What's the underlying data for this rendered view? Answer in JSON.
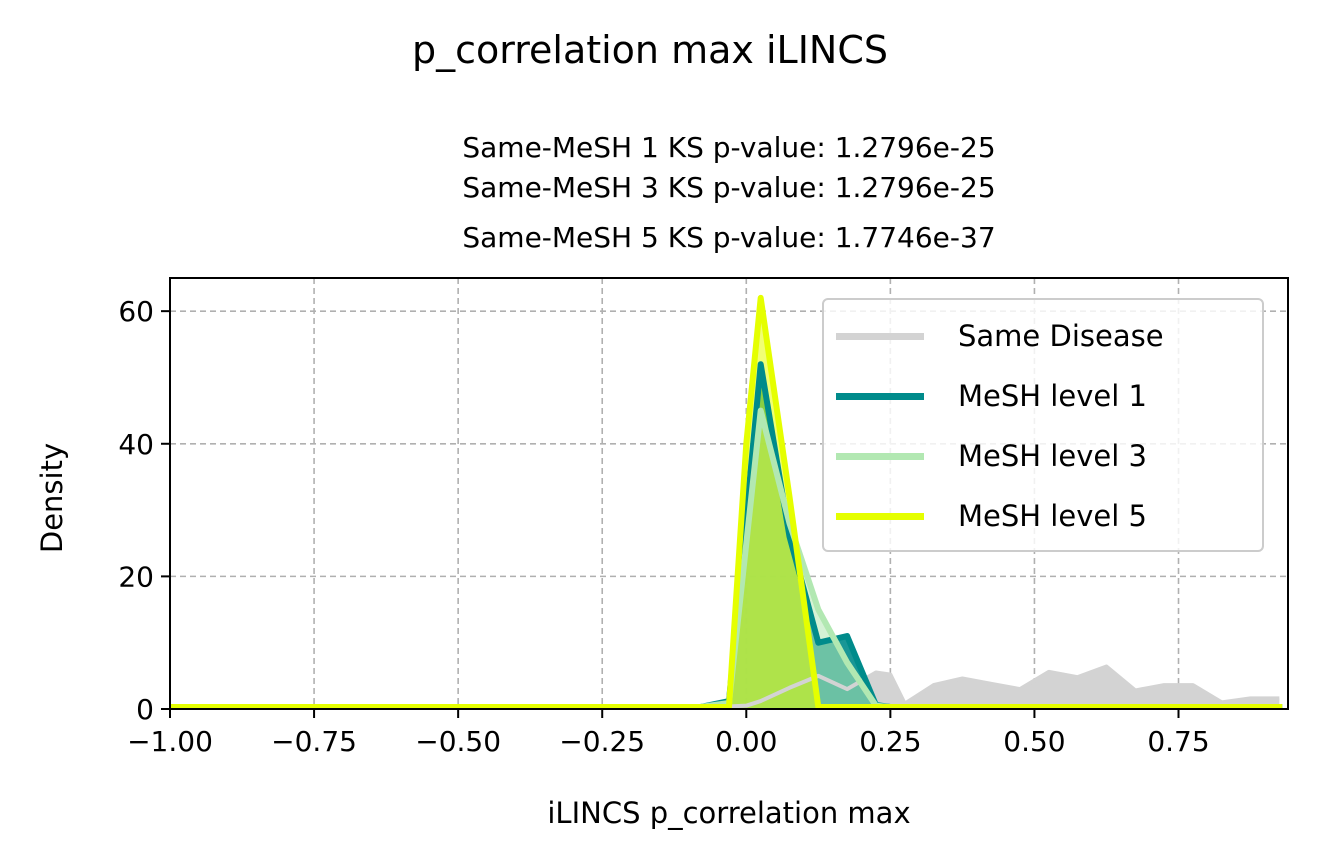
{
  "suptitle": "p_correlation max iLINCS",
  "subtitle_lines": [
    "Same-MeSH 1 KS p-value: 1.2796e-25",
    "Same-MeSH 3 KS p-value: 1.2796e-25",
    "Same-MeSH 5 KS p-value: 1.7746e-37"
  ],
  "chart_data": {
    "type": "area",
    "title": "p_correlation max iLINCS",
    "xlabel": "iLINCS p_correlation max",
    "ylabel": "Density",
    "xlim": [
      -1.0,
      0.94
    ],
    "ylim": [
      0,
      65
    ],
    "xticks": [
      -1.0,
      -0.75,
      -0.5,
      -0.25,
      0.0,
      0.25,
      0.5,
      0.75
    ],
    "xtick_labels": [
      "−1.00",
      "−0.75",
      "−0.50",
      "−0.25",
      "0.00",
      "0.25",
      "0.50",
      "0.75"
    ],
    "yticks": [
      0,
      20,
      40,
      60
    ],
    "ytick_labels": [
      "0",
      "20",
      "40",
      "60"
    ],
    "grid": true,
    "legend_position": "top-right",
    "series": [
      {
        "name": "Same Disease",
        "color": "#d3d3d3",
        "x": [
          -1.0,
          -0.05,
          0.0,
          0.025,
          0.075,
          0.125,
          0.175,
          0.225,
          0.25,
          0.275,
          0.325,
          0.375,
          0.425,
          0.475,
          0.525,
          0.575,
          0.625,
          0.675,
          0.725,
          0.775,
          0.825,
          0.875,
          0.925
        ],
        "y": [
          0.3,
          0.3,
          0.5,
          1.2,
          3.2,
          5.0,
          3.0,
          5.5,
          5.2,
          0.8,
          3.6,
          4.6,
          3.8,
          3.0,
          5.6,
          4.8,
          6.4,
          2.8,
          3.6,
          3.6,
          1.0,
          1.6,
          1.6
        ]
      },
      {
        "name": "MeSH level 1",
        "color": "#008b8b",
        "x": [
          -1.0,
          -0.08,
          -0.03,
          0.025,
          0.075,
          0.125,
          0.175,
          0.225,
          0.25,
          0.93
        ],
        "y": [
          0.3,
          0.3,
          1.2,
          52.0,
          26.0,
          10.0,
          11.0,
          0.6,
          0.3,
          0.3
        ]
      },
      {
        "name": "MeSH level 3",
        "color": "#b2e8b2",
        "x": [
          -1.0,
          -0.08,
          -0.03,
          0.025,
          0.075,
          0.125,
          0.175,
          0.225,
          0.25,
          0.93
        ],
        "y": [
          0.3,
          0.3,
          0.9,
          45.0,
          28.0,
          15.0,
          7.0,
          0.5,
          0.3,
          0.3
        ]
      },
      {
        "name": "MeSH level 5",
        "color": "#e5ff00",
        "x": [
          -1.0,
          -0.03,
          0.0,
          0.025,
          0.075,
          0.125,
          0.15,
          0.93
        ],
        "y": [
          0.3,
          0.3,
          40.0,
          62.0,
          32.0,
          0.3,
          0.3,
          0.3
        ]
      }
    ]
  }
}
